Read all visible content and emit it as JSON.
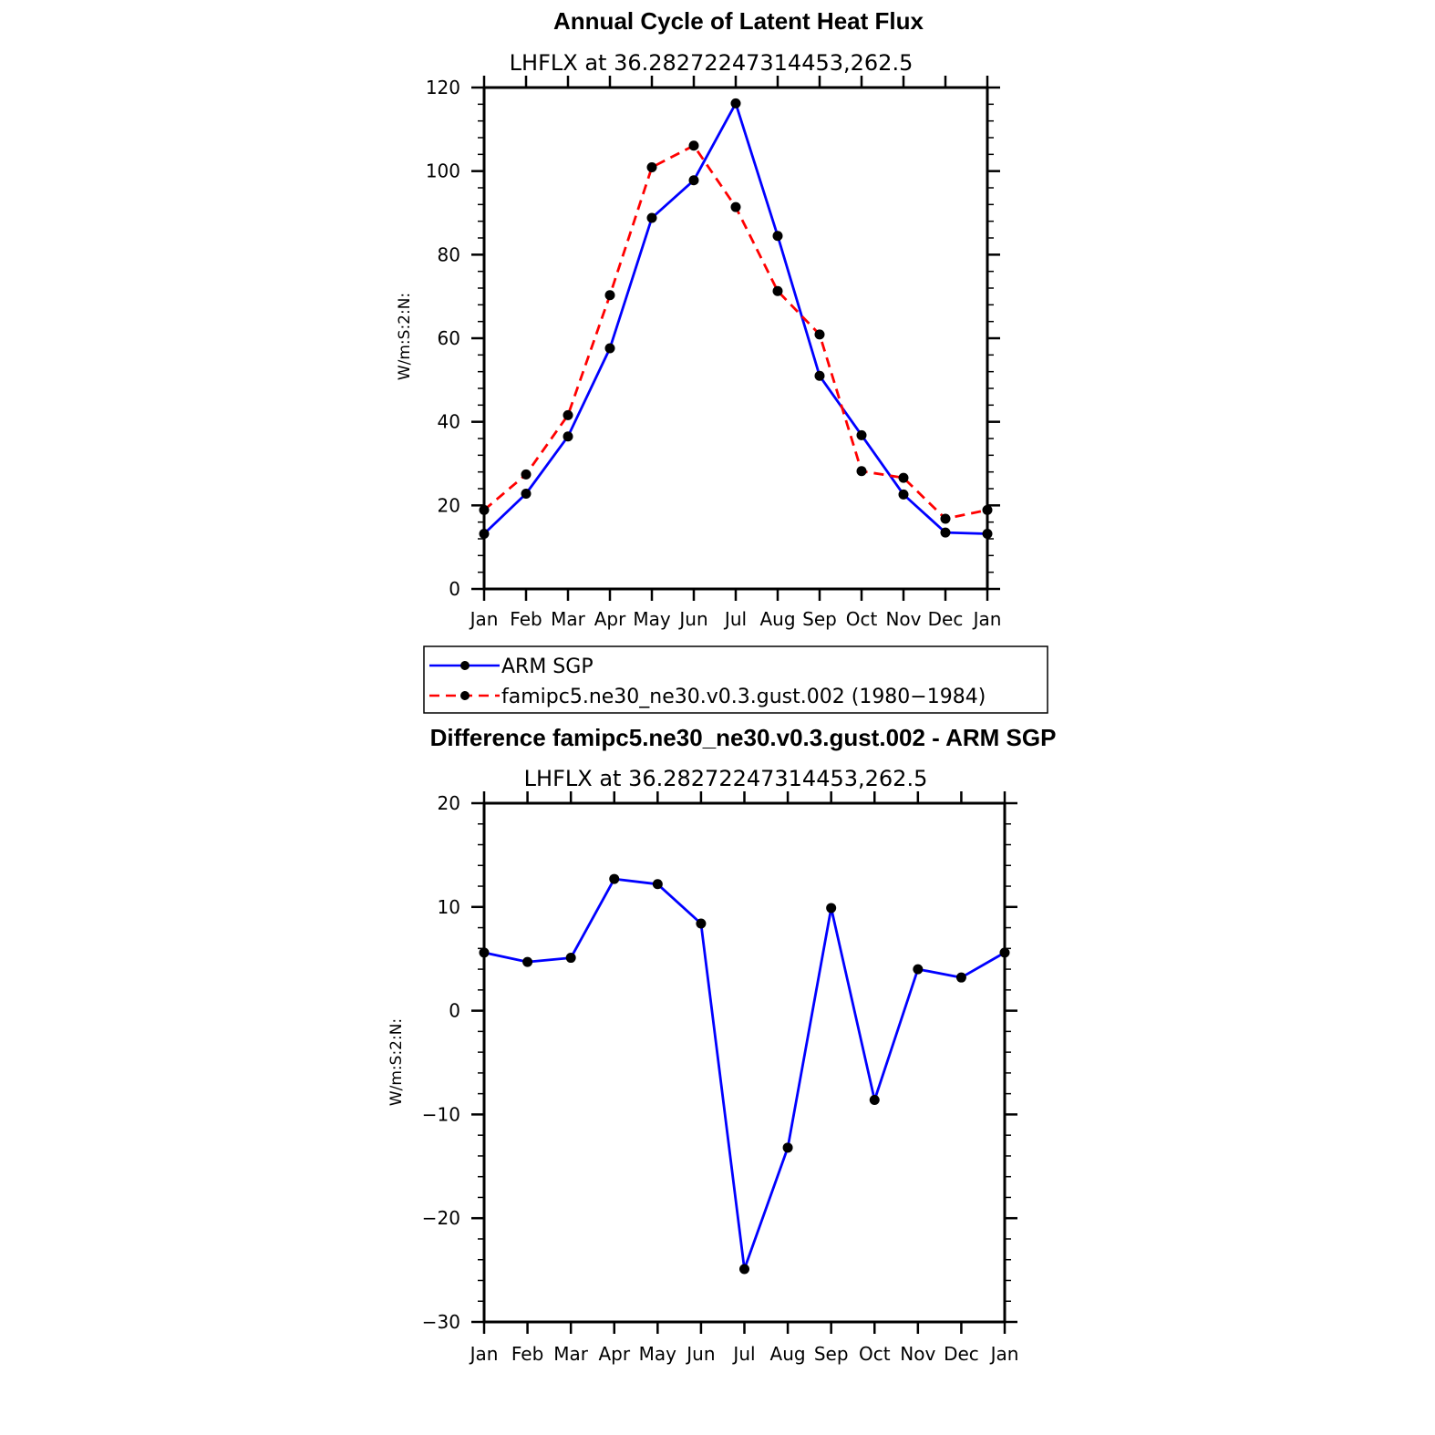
{
  "chart_data": [
    {
      "type": "line",
      "title": "Annual Cycle of Latent Heat Flux",
      "subtitle": "LHFLX at 36.28272247314453,262.5",
      "ylabel": "W/m:S:2:N:",
      "xlabel": "",
      "categories": [
        "Jan",
        "Feb",
        "Mar",
        "Apr",
        "May",
        "Jun",
        "Jul",
        "Aug",
        "Sep",
        "Oct",
        "Nov",
        "Dec",
        "Jan"
      ],
      "ylim": [
        0,
        120
      ],
      "yticks": [
        0,
        20,
        40,
        60,
        80,
        100,
        120
      ],
      "ytick_labels": [
        "0",
        "20",
        "40",
        "60",
        "80",
        "100",
        "120"
      ],
      "series": [
        {
          "name": "ARM SGP",
          "color": "#0000ff",
          "dash": "solid",
          "values": [
            13.2,
            22.8,
            36.5,
            57.6,
            88.8,
            97.8,
            116.2,
            84.5,
            51.0,
            36.8,
            22.6,
            13.5,
            13.2
          ]
        },
        {
          "name": "famipc5.ne30_ne30.v0.3.gust.002 (1980−1984)",
          "color": "#ff0000",
          "dash": "dashed",
          "values": [
            18.9,
            27.4,
            41.6,
            70.3,
            100.9,
            106.1,
            91.4,
            71.3,
            60.9,
            28.2,
            26.6,
            16.8,
            18.9
          ]
        }
      ],
      "legend": "below",
      "grid": false
    },
    {
      "type": "line",
      "title": "Difference famipc5.ne30_ne30.v0.3.gust.002 - ARM SGP",
      "subtitle": "LHFLX at 36.28272247314453,262.5",
      "ylabel": "W/m:S:2:N:",
      "xlabel": "",
      "categories": [
        "Jan",
        "Feb",
        "Mar",
        "Apr",
        "May",
        "Jun",
        "Jul",
        "Aug",
        "Sep",
        "Oct",
        "Nov",
        "Dec",
        "Jan"
      ],
      "ylim": [
        -30,
        20
      ],
      "yticks": [
        -30,
        -20,
        -10,
        0,
        10,
        20
      ],
      "ytick_labels": [
        "−30",
        "−20",
        "−10",
        "0",
        "10",
        "20"
      ],
      "series": [
        {
          "color": "#0000ff",
          "dash": "solid",
          "values": [
            5.6,
            4.7,
            5.1,
            12.7,
            12.2,
            8.4,
            -24.9,
            -13.2,
            9.9,
            -8.6,
            4.0,
            3.2,
            5.6
          ]
        }
      ],
      "grid": false
    }
  ]
}
